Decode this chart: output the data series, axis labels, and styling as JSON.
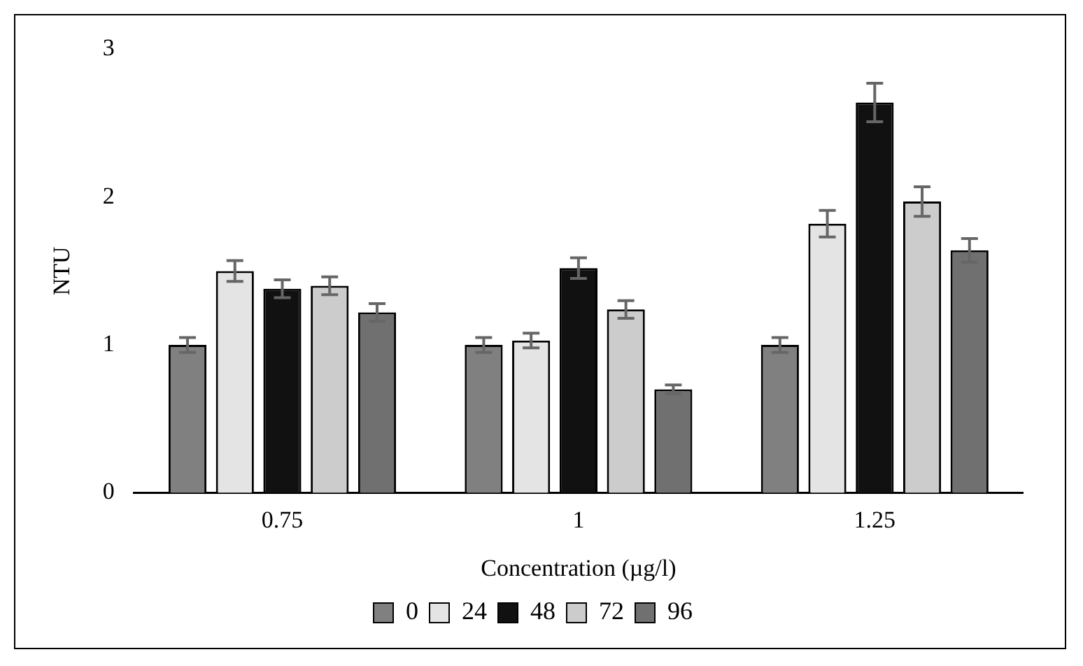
{
  "chart_data": {
    "type": "bar",
    "xlabel": "Concentration (µg/l)",
    "ylabel": "NTU",
    "categories": [
      "0.75",
      "1",
      "1.25"
    ],
    "series": [
      {
        "name": "0",
        "color": "#808080",
        "values": [
          1.0,
          1.0,
          1.0
        ],
        "errors": [
          0.05,
          0.05,
          0.05
        ]
      },
      {
        "name": "24",
        "color": "#e4e4e4",
        "values": [
          1.5,
          1.03,
          1.82
        ],
        "errors": [
          0.07,
          0.05,
          0.09
        ]
      },
      {
        "name": "48",
        "color": "#111111",
        "values": [
          1.38,
          1.52,
          2.64
        ],
        "errors": [
          0.06,
          0.07,
          0.13
        ]
      },
      {
        "name": "72",
        "color": "#cccccc",
        "values": [
          1.4,
          1.24,
          1.97
        ],
        "errors": [
          0.06,
          0.06,
          0.1
        ]
      },
      {
        "name": "96",
        "color": "#707070",
        "values": [
          1.22,
          0.7,
          1.64
        ],
        "errors": [
          0.06,
          0.03,
          0.08
        ]
      }
    ],
    "ylim": [
      0,
      3
    ],
    "yticks": [
      0,
      1,
      2,
      3
    ],
    "grid": false,
    "legend": "bottom"
  }
}
